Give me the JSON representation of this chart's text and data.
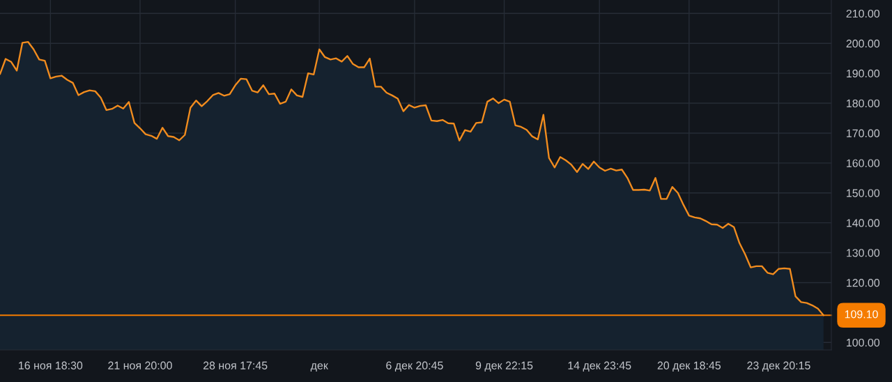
{
  "chart_data": {
    "type": "area",
    "categories": [
      null,
      null,
      null,
      null,
      null,
      null,
      null,
      null,
      null,
      "16 ноя 18:30",
      null,
      null,
      null,
      null,
      null,
      null,
      null,
      null,
      null,
      null,
      null,
      null,
      null,
      null,
      null,
      "21 ноя 20:00",
      null,
      null,
      null,
      null,
      null,
      null,
      null,
      null,
      null,
      null,
      null,
      null,
      null,
      null,
      null,
      null,
      "28 ноя 17:45",
      null,
      null,
      null,
      null,
      null,
      null,
      null,
      null,
      null,
      null,
      null,
      null,
      null,
      null,
      "дек",
      null,
      null,
      null,
      null,
      null,
      null,
      null,
      null,
      null,
      null,
      null,
      null,
      null,
      null,
      null,
      null,
      "6 дек 20:45",
      null,
      null,
      null,
      null,
      null,
      null,
      null,
      null,
      null,
      null,
      null,
      null,
      null,
      null,
      null,
      "9 дек 22:15",
      null,
      null,
      null,
      null,
      null,
      null,
      null,
      null,
      null,
      null,
      null,
      null,
      null,
      null,
      null,
      null,
      "14 дек 23:45",
      null,
      null,
      null,
      null,
      null,
      null,
      null,
      null,
      null,
      null,
      null,
      null,
      null,
      null,
      null,
      "20 дек 18:45",
      null,
      null,
      null,
      null,
      null,
      null,
      null,
      null,
      null,
      null,
      null,
      null,
      null,
      null,
      null,
      "23 дек 20:15",
      null,
      null,
      null,
      null,
      null,
      null,
      null,
      null
    ],
    "series": [
      {
        "color": "#f28c1e",
        "values": [
          189.7,
          194.8,
          193.8,
          190.9,
          200.2,
          200.5,
          198,
          194.6,
          194.2,
          188.3,
          188.9,
          189.2,
          187.8,
          186.8,
          182.7,
          183.7,
          184.3,
          184,
          181.8,
          177.7,
          178.1,
          179.2,
          178.2,
          180.4,
          173.4,
          171.6,
          169.6,
          169.1,
          168.1,
          171.8,
          169,
          168.7,
          167.6,
          169.4,
          178.5,
          180.9,
          179,
          180.7,
          182.7,
          183.4,
          182.5,
          183,
          186,
          188.2,
          188,
          184.2,
          183.6,
          186,
          183,
          183.2,
          179.8,
          180.5,
          184.6,
          182.6,
          182.1,
          190,
          189.6,
          198,
          195.4,
          194.6,
          195,
          193.9,
          195.8,
          193.1,
          192,
          192,
          194.9,
          185.5,
          185.5,
          183.5,
          182.6,
          181.5,
          177.3,
          179.4,
          178.5,
          179.1,
          179.3,
          174.2,
          174,
          174.4,
          173.3,
          173.2,
          167.5,
          171,
          170.5,
          173.4,
          173.6,
          180.5,
          181.6,
          180,
          181.2,
          180.5,
          172.6,
          172.1,
          171.1,
          168.9,
          167.9,
          176.1,
          161.7,
          158.5,
          162,
          160.9,
          159.4,
          157,
          159.7,
          158,
          160.5,
          158.5,
          157.4,
          158.1,
          157.5,
          157.8,
          155,
          151,
          151,
          151.1,
          150.8,
          155,
          148,
          148,
          152,
          150,
          146,
          142.4,
          141.8,
          141.5,
          140.6,
          139.5,
          139.4,
          138.3,
          139.7,
          138.6,
          133.2,
          129.5,
          125.1,
          125.5,
          125.5,
          123.3,
          122.8,
          124.6,
          124.8,
          124.6,
          115.4,
          113.5,
          113.2,
          112.4,
          111.3,
          109.1
        ]
      }
    ],
    "ylim": [
      97.5,
      214.5
    ],
    "yticks": [
      {
        "value": 100,
        "label": "100.00"
      },
      {
        "value": 120,
        "label": "120.00"
      },
      {
        "value": 130,
        "label": "130.00"
      },
      {
        "value": 140,
        "label": "140.00"
      },
      {
        "value": 150,
        "label": "150.00"
      },
      {
        "value": 160,
        "label": "160.00"
      },
      {
        "value": 170,
        "label": "170.00"
      },
      {
        "value": 180,
        "label": "180.00"
      },
      {
        "value": 190,
        "label": "190.00"
      },
      {
        "value": 200,
        "label": "200.00"
      },
      {
        "value": 210,
        "label": "210.00"
      }
    ],
    "grid": true,
    "ref_lines": [
      {
        "axis": "y",
        "value": 109.1,
        "label": "109.10",
        "color": "#f57c00"
      }
    ]
  }
}
